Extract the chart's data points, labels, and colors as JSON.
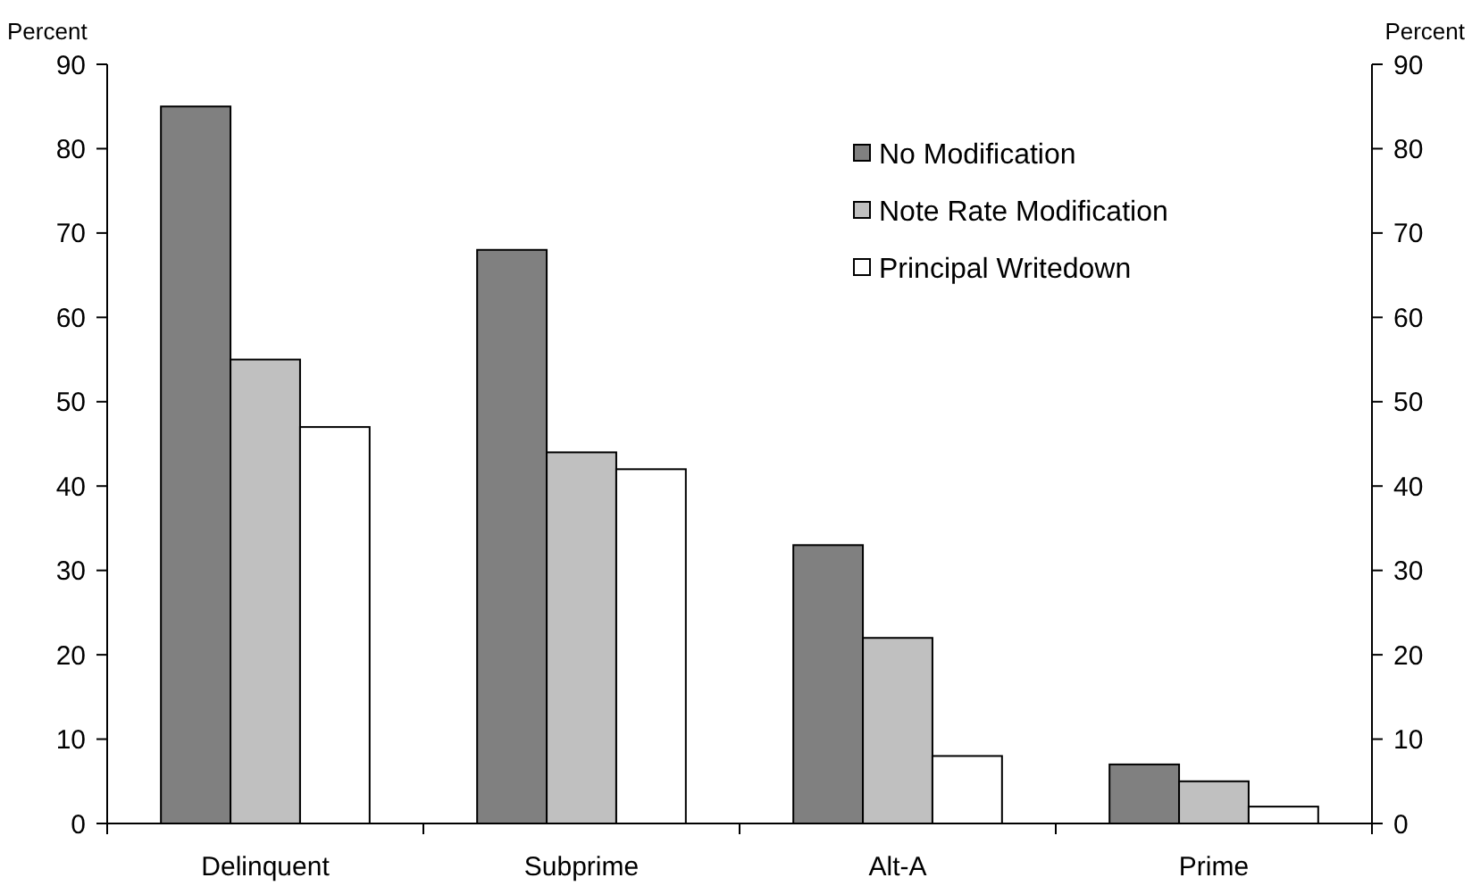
{
  "chart_data": {
    "type": "bar",
    "ylabel": "Percent",
    "y2label": "Percent",
    "categories": [
      "Delinquent",
      "Subprime",
      "Alt-A",
      "Prime"
    ],
    "series": [
      {
        "name": "No Modification",
        "color": "#808080",
        "values": [
          85,
          68,
          33,
          7
        ]
      },
      {
        "name": "Note Rate Modification",
        "color": "#c0c0c0",
        "values": [
          55,
          44,
          22,
          5
        ]
      },
      {
        "name": "Principal Writedown",
        "color": "#ffffff",
        "values": [
          47,
          42,
          8,
          2
        ]
      }
    ],
    "ylim": [
      0,
      90
    ],
    "yticks": [
      0,
      10,
      20,
      30,
      40,
      50,
      60,
      70,
      80,
      90
    ],
    "y2lim": [
      0,
      90
    ],
    "y2ticks": [
      0,
      10,
      20,
      30,
      40,
      50,
      60,
      70,
      80,
      90
    ],
    "grid": false,
    "legend": "top right"
  }
}
